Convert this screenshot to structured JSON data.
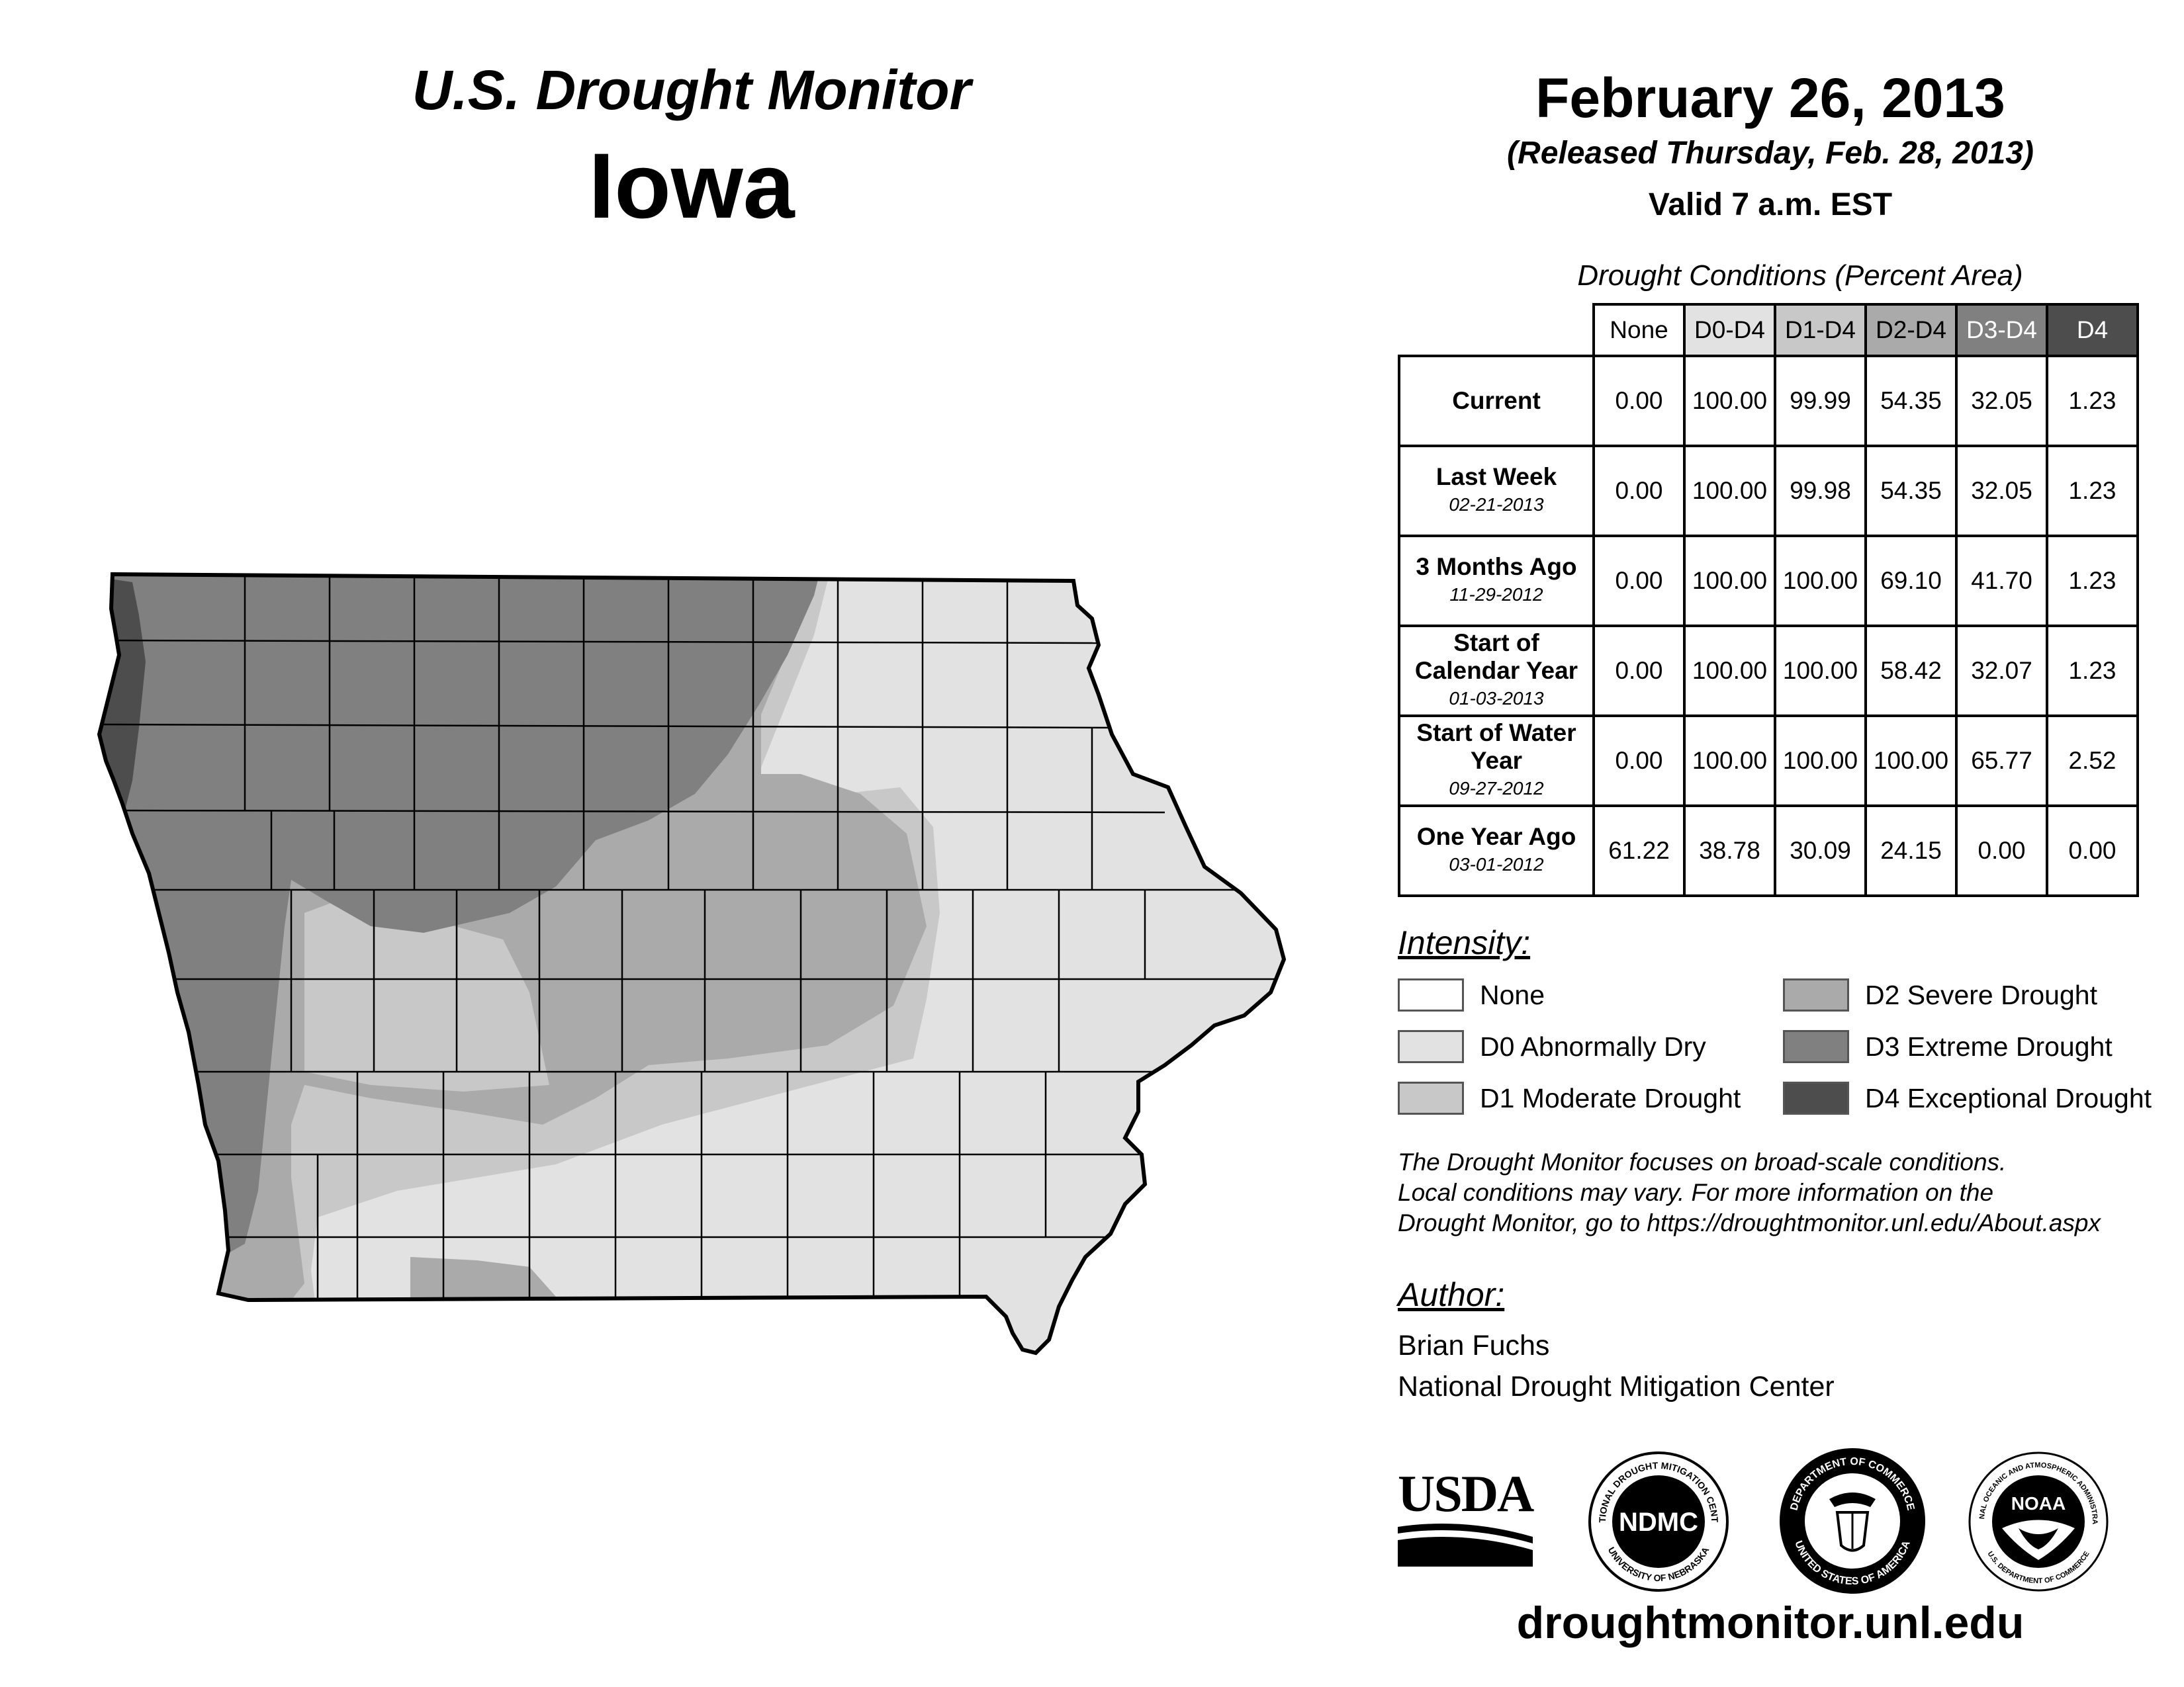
{
  "header": {
    "title": "U.S. Drought Monitor",
    "state": "Iowa",
    "date": "February 26, 2013",
    "released": "(Released Thursday, Feb. 28, 2013)",
    "valid": "Valid 7 a.m. EST"
  },
  "table": {
    "caption": "Drought Conditions (Percent Area)",
    "columns": [
      "None",
      "D0-D4",
      "D1-D4",
      "D2-D4",
      "D3-D4",
      "D4"
    ],
    "rows": [
      {
        "label": "Current",
        "date": "",
        "values": [
          "0.00",
          "100.00",
          "99.99",
          "54.35",
          "32.05",
          "1.23"
        ]
      },
      {
        "label": "Last Week",
        "date": "02-21-2013",
        "values": [
          "0.00",
          "100.00",
          "99.98",
          "54.35",
          "32.05",
          "1.23"
        ]
      },
      {
        "label": "3 Months Ago",
        "date": "11-29-2012",
        "values": [
          "0.00",
          "100.00",
          "100.00",
          "69.10",
          "41.70",
          "1.23"
        ]
      },
      {
        "label": "Start of Calendar Year",
        "date": "01-03-2013",
        "values": [
          "0.00",
          "100.00",
          "100.00",
          "58.42",
          "32.07",
          "1.23"
        ]
      },
      {
        "label": "Start of Water Year",
        "date": "09-27-2012",
        "values": [
          "0.00",
          "100.00",
          "100.00",
          "100.00",
          "65.77",
          "2.52"
        ]
      },
      {
        "label": "One Year Ago",
        "date": "03-01-2012",
        "values": [
          "61.22",
          "38.78",
          "30.09",
          "24.15",
          "0.00",
          "0.00"
        ]
      }
    ]
  },
  "legend": {
    "title": "Intensity:",
    "items": [
      {
        "label": "None",
        "color": "#ffffff"
      },
      {
        "label": "D0 Abnormally Dry",
        "color": "#e2e2e2"
      },
      {
        "label": "D1 Moderate Drought",
        "color": "#c8c8c8"
      },
      {
        "label": "D2 Severe Drought",
        "color": "#aaaaaa"
      },
      {
        "label": "D3 Extreme Drought",
        "color": "#808080"
      },
      {
        "label": "D4 Exceptional Drought",
        "color": "#4d4d4d"
      }
    ]
  },
  "note": {
    "line1": "The Drought Monitor focuses on broad-scale conditions.",
    "line2": "Local conditions may vary. For more information on the",
    "line3": "Drought Monitor, go to https://droughtmonitor.unl.edu/About.aspx"
  },
  "author": {
    "title": "Author:",
    "name": "Brian Fuchs",
    "org": "National Drought Mitigation Center"
  },
  "logos": {
    "usda": "USDA",
    "ndmc": "NDMC",
    "ndmc_ring_top": "NATIONAL DROUGHT MITIGATION CENTER",
    "ndmc_ring_bottom": "UNIVERSITY OF NEBRASKA",
    "doc_ring_top": "DEPARTMENT OF COMMERCE",
    "doc_ring_bottom": "UNITED STATES OF AMERICA",
    "noaa": "NOAA",
    "noaa_ring_top": "NATIONAL OCEANIC AND ATMOSPHERIC ADMINISTRATION",
    "noaa_ring_bottom": "U.S. DEPARTMENT OF COMMERCE"
  },
  "footer": {
    "url": "droughtmonitor.unl.edu"
  }
}
